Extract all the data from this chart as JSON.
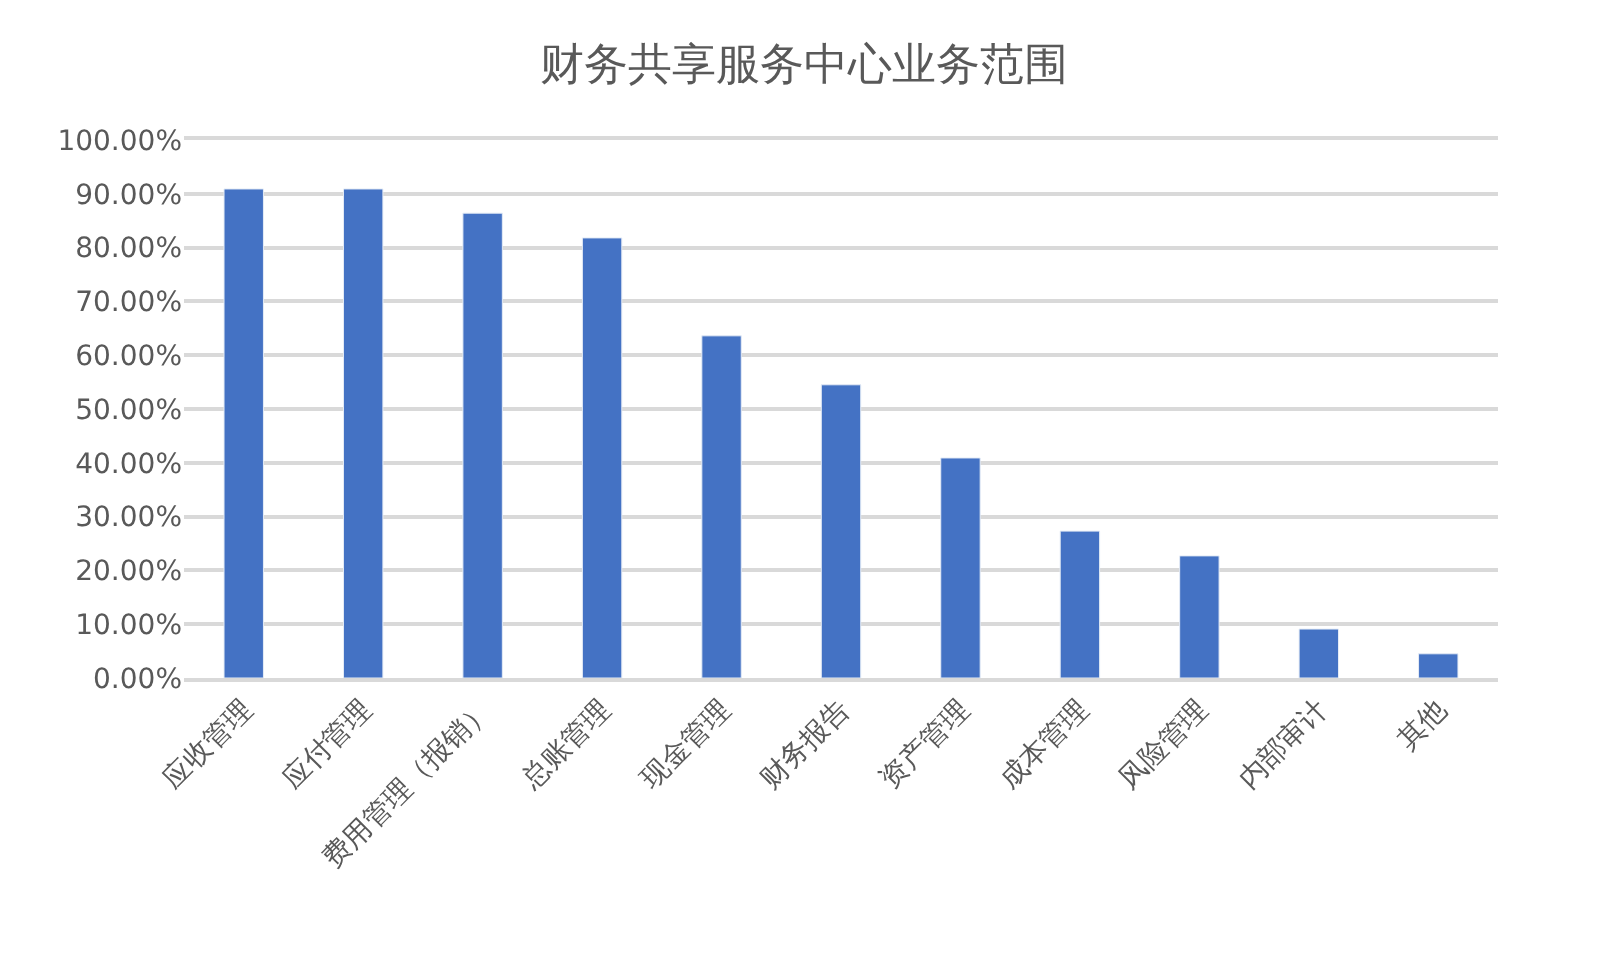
{
  "chart_data": {
    "type": "bar",
    "title": "财务共享服务中心业务范围",
    "categories": [
      "应收管理",
      "应付管理",
      "费用管理（报销）",
      "总账管理",
      "现金管理",
      "财务报告",
      "资产管理",
      "成本管理",
      "风险管理",
      "内部审计",
      "其他"
    ],
    "values": [
      90.9,
      90.9,
      86.4,
      81.8,
      63.6,
      54.5,
      40.9,
      27.3,
      22.7,
      9.1,
      4.5
    ],
    "color": "#4472c4",
    "ylim": [
      0,
      100
    ],
    "yticks": [
      {
        "value": 0,
        "label": "0.00%"
      },
      {
        "value": 10,
        "label": "10.00%"
      },
      {
        "value": 20,
        "label": "20.00%"
      },
      {
        "value": 30,
        "label": "30.00%"
      },
      {
        "value": 40,
        "label": "40.00%"
      },
      {
        "value": 50,
        "label": "50.00%"
      },
      {
        "value": 60,
        "label": "60.00%"
      },
      {
        "value": 70,
        "label": "70.00%"
      },
      {
        "value": 80,
        "label": "80.00%"
      },
      {
        "value": 90,
        "label": "90.00%"
      },
      {
        "value": 100,
        "label": "100.00%"
      }
    ],
    "grid": "y"
  }
}
